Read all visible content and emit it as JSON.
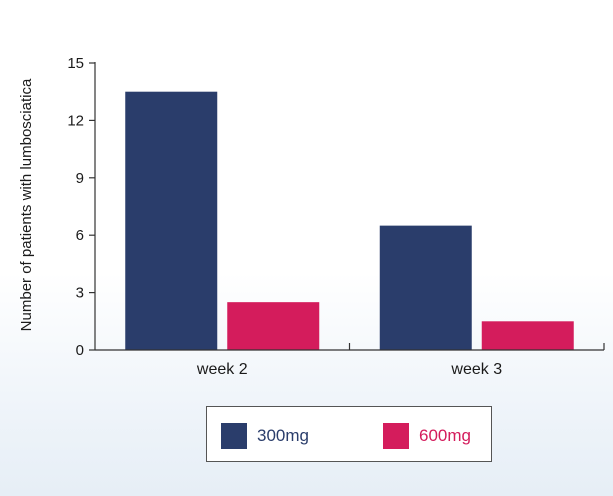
{
  "chart_data": {
    "type": "bar",
    "categories": [
      "week 2",
      "week 3"
    ],
    "series": [
      {
        "name": "300mg",
        "color": "#2a3d6b",
        "values": [
          13.5,
          6.5
        ]
      },
      {
        "name": "600mg",
        "color": "#d41c5c",
        "values": [
          2.5,
          1.5
        ]
      }
    ],
    "title": "",
    "xlabel": "",
    "ylabel": "Number of patients with lumbosciatica",
    "ylim": [
      0,
      15
    ],
    "yticks": [
      0,
      3,
      6,
      9,
      12,
      15
    ],
    "grid": false,
    "legend_position": "bottom-center"
  }
}
